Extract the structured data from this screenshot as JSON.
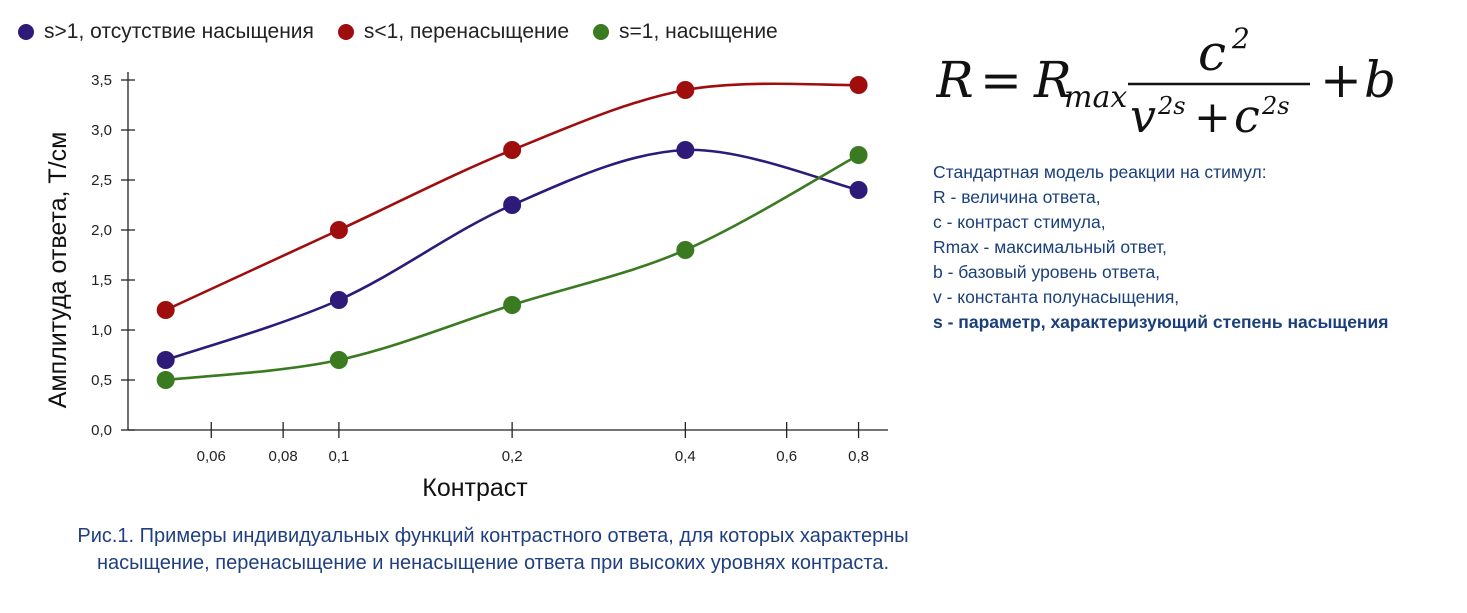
{
  "chart_data": {
    "type": "line",
    "title": "",
    "xlabel": "Контраст",
    "ylabel": "Амплитуда ответа, Т/см",
    "x_scale": "log",
    "x_ticks": [
      {
        "value": 0.06,
        "label": "0,06"
      },
      {
        "value": 0.08,
        "label": "0,08"
      },
      {
        "value": 0.1,
        "label": "0,1"
      },
      {
        "value": 0.2,
        "label": "0,2"
      },
      {
        "value": 0.4,
        "label": "0,4"
      },
      {
        "value": 0.6,
        "label": "0,6"
      },
      {
        "value": 0.8,
        "label": "0,8"
      }
    ],
    "y_ticks": [
      {
        "value": 0,
        "label": "0,0"
      },
      {
        "value": 0.5,
        "label": "0,5"
      },
      {
        "value": 1,
        "label": "1,0"
      },
      {
        "value": 1.5,
        "label": "1,5"
      },
      {
        "value": 2,
        "label": "2,0"
      },
      {
        "value": 2.5,
        "label": "2,5"
      },
      {
        "value": 3,
        "label": "3,0"
      },
      {
        "value": 3.5,
        "label": "3,5"
      }
    ],
    "xlim": [
      0.043,
      0.9
    ],
    "ylim": [
      0,
      3.5
    ],
    "grid": false,
    "legend_position": "top",
    "x": [
      0.05,
      0.1,
      0.2,
      0.4,
      0.8
    ],
    "series": [
      {
        "name": "s>1, отсутствие насыщения",
        "color": "#2e1a78",
        "values": [
          0.7,
          1.3,
          2.25,
          2.8,
          2.4
        ]
      },
      {
        "name": "s<1, перенасыщение",
        "color": "#a00d0d",
        "values": [
          1.2,
          2.0,
          2.8,
          3.4,
          3.45
        ]
      },
      {
        "name": "s=1, насыщение",
        "color": "#3a7a20",
        "values": [
          0.5,
          0.7,
          1.25,
          1.8,
          2.75
        ]
      }
    ]
  },
  "formula": {
    "lhs": "R",
    "equals": "=",
    "rmax": "R",
    "rmax_sub": "max",
    "num": "c",
    "num_exp": "2",
    "den_v": "v",
    "den_v_exp": "2s",
    "plus": "+",
    "den_c": "c",
    "den_c_exp": "2s",
    "plus2": "+",
    "tail": "b"
  },
  "description": {
    "heading": "Стандартная модель реакции на стимул:",
    "lines": [
      "R - величина ответа,",
      "c - контраст стимула,",
      "Rmax - максимальный ответ,",
      "b - базовый уровень ответа,",
      "v - константа полунасыщения,"
    ],
    "bold_line": "s - параметр, характеризующий степень насыщения"
  },
  "caption": "Рис.1. Примеры индивидуальных функций контрастного ответа, для которых характерны насыщение, перенасыщение и ненасыщение ответа при высоких уровнях контраста."
}
